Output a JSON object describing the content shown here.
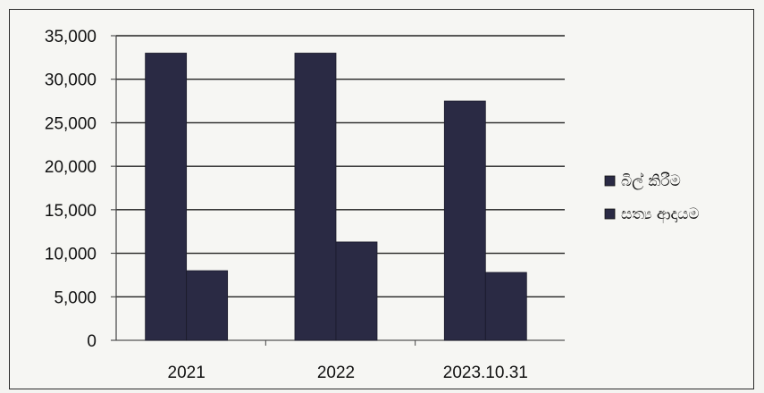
{
  "chart_data": {
    "type": "bar",
    "categories": [
      "2021",
      "2022",
      "2023.10.31"
    ],
    "series": [
      {
        "name": "බිල් කිරීම",
        "values": [
          33000,
          33000,
          27500
        ]
      },
      {
        "name": "සත්‍ය ආදායම",
        "values": [
          8000,
          11300,
          7800
        ]
      }
    ],
    "yticks": [
      "0",
      "5,000",
      "10,000",
      "15,000",
      "20,000",
      "25,000",
      "30,000",
      "35,000"
    ],
    "ylim": [
      0,
      35000
    ],
    "grid": true,
    "legend": "right",
    "colors": [
      "#2a2a44",
      "#2a2a44"
    ]
  }
}
